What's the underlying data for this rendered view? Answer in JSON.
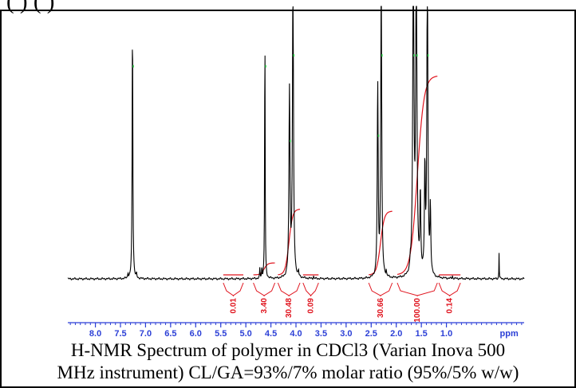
{
  "top_partial_text": "(                              ) (                          )",
  "caption_lines": [
    "H-NMR Spectrum of polymer in CDCl3 (Varian Inova 500",
    "MHz instrument) CL/GA=93%/7% molar ratio (95%/5% w/w)"
  ],
  "colors": {
    "spectrum": "#000000",
    "integral": "#e0141e",
    "axis": "#2b3fd6",
    "peak_marker": "#2bd64a"
  },
  "chart_data": {
    "type": "line",
    "title": "",
    "xlabel": "ppm",
    "ylabel": "",
    "xlim": [
      8.55,
      -0.55
    ],
    "x_reversed": true,
    "x_major_ticks": [
      8.0,
      7.5,
      7.0,
      6.5,
      6.0,
      5.5,
      5.0,
      4.5,
      4.0,
      3.5,
      3.0,
      2.5,
      2.0,
      1.5,
      1.0
    ],
    "x_tick_labels": [
      "8.0",
      "7.5",
      "7.0",
      "6.5",
      "6.0",
      "5.5",
      "5.0",
      "4.5",
      "4.0",
      "3.5",
      "3.0",
      "2.5",
      "2.0",
      "1.5",
      "1.0"
    ],
    "x_minor_step": 0.1,
    "unit_label": "ppm",
    "peaks": [
      {
        "ppm": 7.26,
        "height": 0.98,
        "width": 0.008
      },
      {
        "ppm": 7.35,
        "height": 0.02,
        "width": 0.006
      },
      {
        "ppm": 7.18,
        "height": 0.015,
        "width": 0.006
      },
      {
        "ppm": 4.62,
        "height": 0.98,
        "width": 0.006
      },
      {
        "ppm": 4.72,
        "height": 0.04,
        "width": 0.005
      },
      {
        "ppm": 4.68,
        "height": 0.04,
        "width": 0.005
      },
      {
        "ppm": 4.13,
        "height": 0.7,
        "width": 0.012
      },
      {
        "ppm": 4.06,
        "height": 1.15,
        "width": 0.012
      },
      {
        "ppm": 3.95,
        "height": 0.02,
        "width": 0.006
      },
      {
        "ppm": 3.65,
        "height": 0.01,
        "width": 0.005
      },
      {
        "ppm": 2.37,
        "height": 0.72,
        "width": 0.011
      },
      {
        "ppm": 2.3,
        "height": 1.15,
        "width": 0.011
      },
      {
        "ppm": 2.2,
        "height": 0.02,
        "width": 0.006
      },
      {
        "ppm": 1.72,
        "height": 0.03,
        "width": 0.008
      },
      {
        "ppm": 1.66,
        "height": 1.2,
        "width": 0.014
      },
      {
        "ppm": 1.6,
        "height": 1.2,
        "width": 0.014
      },
      {
        "ppm": 1.52,
        "height": 0.3,
        "width": 0.01
      },
      {
        "ppm": 1.43,
        "height": 0.4,
        "width": 0.01
      },
      {
        "ppm": 1.38,
        "height": 1.2,
        "width": 0.012
      },
      {
        "ppm": 1.32,
        "height": 0.25,
        "width": 0.01
      },
      {
        "ppm": 0.88,
        "height": 0.01,
        "width": 0.005
      },
      {
        "ppm": -0.05,
        "height": 0.1,
        "width": 0.004
      }
    ],
    "integrals": [
      {
        "label": "0.01",
        "from": 5.45,
        "to": 5.05,
        "rise": 0.0
      },
      {
        "label": "3.40",
        "from": 4.85,
        "to": 4.42,
        "rise": 0.06
      },
      {
        "label": "30.48",
        "from": 4.36,
        "to": 3.92,
        "rise": 0.33
      },
      {
        "label": "0.09",
        "from": 3.86,
        "to": 3.55,
        "rise": 0.0
      },
      {
        "label": "30.66",
        "from": 2.55,
        "to": 2.08,
        "rise": 0.32
      },
      {
        "label": "100.00",
        "from": 1.98,
        "to": 1.18,
        "rise": 1.0
      },
      {
        "label": "0.14",
        "from": 1.15,
        "to": 0.72,
        "rise": 0.0
      }
    ],
    "grid": false,
    "legend": "none"
  }
}
